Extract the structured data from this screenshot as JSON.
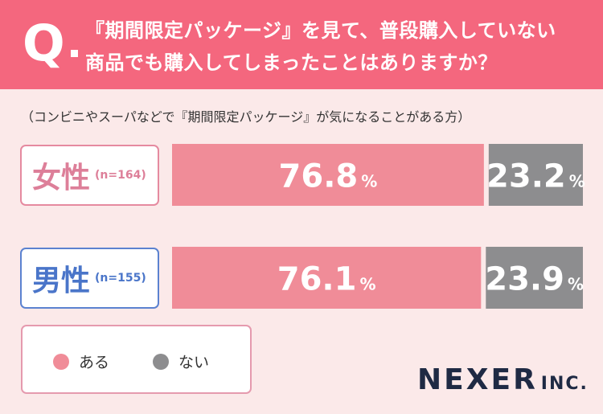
{
  "header": {
    "q_mark": "Q",
    "question_line1": "『期間限定パッケージ』を見て、普段購入していない",
    "question_line2": "商品でも購入してしまったことはありますか？"
  },
  "subtitle": "（コンビニやスーパなどで『期間限定パッケージ』が気になることがある方）",
  "colors": {
    "header": "#f4677e",
    "background": "#fbe9e9",
    "yes": "#f08c98",
    "no": "#8d8d8f",
    "female": "#dd7f99",
    "male": "#4a75c9"
  },
  "chart_data": {
    "type": "bar",
    "orientation": "horizontal",
    "stacked": true,
    "unit": "%",
    "categories": [
      {
        "label": "女性",
        "n": "(n=164)"
      },
      {
        "label": "男性",
        "n": "(n=155)"
      }
    ],
    "series": [
      {
        "name": "ある",
        "color": "#f08c98",
        "values": [
          76.8,
          76.1
        ],
        "labels": [
          "76.8",
          "76.1"
        ]
      },
      {
        "name": "ない",
        "color": "#8d8d8f",
        "values": [
          23.2,
          23.9
        ],
        "labels": [
          "23.2",
          "23.9"
        ]
      }
    ]
  },
  "legend": [
    {
      "label": "ある",
      "color": "#f08c98"
    },
    {
      "label": "ない",
      "color": "#8d8d8f"
    }
  ],
  "logo": {
    "main": "NEXER",
    "sub": "INC."
  }
}
